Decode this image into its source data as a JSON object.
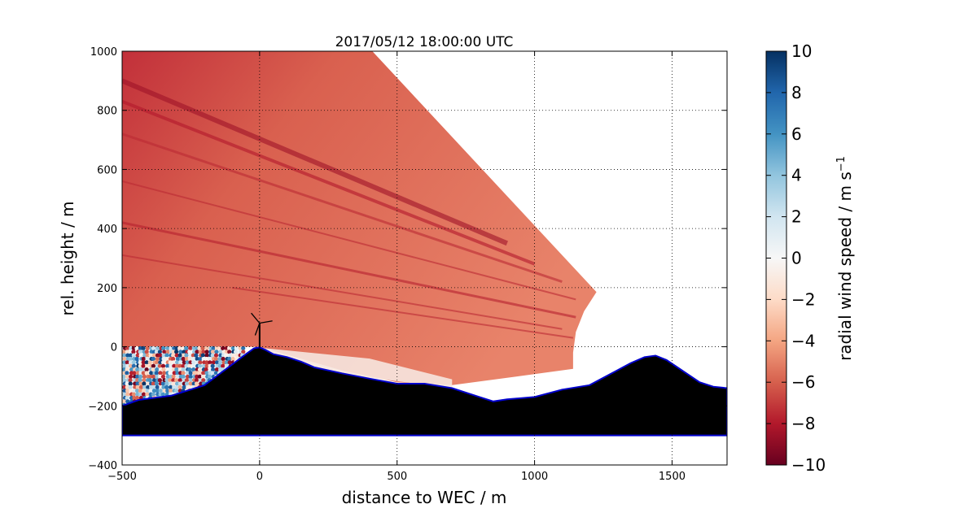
{
  "chart_data": {
    "type": "heatmap",
    "title": "2017/05/12 18:00:00 UTC",
    "xlabel": "distance to WEC / m",
    "ylabel": "rel. height / m",
    "xlim": [
      -500,
      1700
    ],
    "ylim": [
      -400,
      1000
    ],
    "xticks": [
      "−500",
      "0",
      "500",
      "1000",
      "1500"
    ],
    "yticks": [
      "−400",
      "−200",
      "0",
      "200",
      "400",
      "600",
      "800",
      "1000"
    ],
    "grid": true,
    "colorbar": {
      "label": "radial wind speed / m s",
      "label_superscript": "−1",
      "range": [
        -10,
        10
      ],
      "ticks": [
        "−10",
        "−8",
        "−6",
        "−4",
        "−2",
        "0",
        "2",
        "4",
        "6",
        "8",
        "10"
      ],
      "colormap": "RdBu",
      "colors": [
        "#67001f",
        "#b2182b",
        "#d6604d",
        "#f4a582",
        "#fddbc7",
        "#f7f7f7",
        "#d1e5f0",
        "#92c5de",
        "#4393c3",
        "#2166ac",
        "#053061"
      ]
    },
    "scan_sector": {
      "polygon": [
        [
          -500,
          1000
        ],
        [
          410,
          1000
        ],
        [
          1225,
          185
        ],
        [
          1180,
          120
        ],
        [
          1150,
          50
        ],
        [
          1140,
          -20
        ],
        [
          1140,
          -75
        ],
        [
          700,
          -130
        ],
        [
          500,
          -120
        ],
        [
          300,
          -80
        ],
        [
          0,
          0
        ],
        [
          -500,
          0
        ]
      ],
      "dominant_value": -6.5,
      "upper_left_value": -8.5
    },
    "terrain": {
      "profile": [
        [
          -500,
          -200
        ],
        [
          -440,
          -180
        ],
        [
          -320,
          -165
        ],
        [
          -200,
          -130
        ],
        [
          -150,
          -95
        ],
        [
          -100,
          -60
        ],
        [
          -50,
          -25
        ],
        [
          -20,
          -5
        ],
        [
          0,
          -2
        ],
        [
          20,
          -10
        ],
        [
          50,
          -25
        ],
        [
          100,
          -35
        ],
        [
          150,
          -50
        ],
        [
          200,
          -70
        ],
        [
          300,
          -90
        ],
        [
          400,
          -108
        ],
        [
          500,
          -125
        ],
        [
          600,
          -125
        ],
        [
          700,
          -140
        ],
        [
          800,
          -170
        ],
        [
          850,
          -185
        ],
        [
          900,
          -178
        ],
        [
          1000,
          -170
        ],
        [
          1100,
          -145
        ],
        [
          1200,
          -130
        ],
        [
          1250,
          -105
        ],
        [
          1300,
          -80
        ],
        [
          1350,
          -55
        ],
        [
          1400,
          -35
        ],
        [
          1440,
          -30
        ],
        [
          1480,
          -45
        ],
        [
          1520,
          -70
        ],
        [
          1560,
          -95
        ],
        [
          1600,
          -120
        ],
        [
          1650,
          -135
        ],
        [
          1700,
          -140
        ]
      ],
      "base": -300,
      "fill_color": "#000000",
      "outline_color": "#0000cc"
    },
    "turbine_position": [
      0,
      80
    ]
  }
}
